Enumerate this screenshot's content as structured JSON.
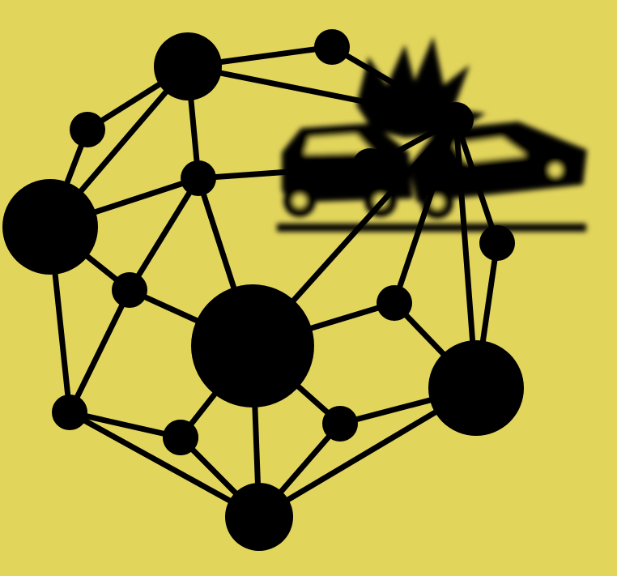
{
  "colors": {
    "background": "#E2D55C",
    "ink": "#000000"
  },
  "illustration": {
    "icon": "car-crash-icon",
    "blurred": true
  },
  "network": {
    "nodes": [
      {
        "id": "n1",
        "size": "medium"
      },
      {
        "id": "n2",
        "size": "small"
      },
      {
        "id": "n3",
        "size": "small"
      },
      {
        "id": "n4",
        "size": "small"
      },
      {
        "id": "n5",
        "size": "large"
      },
      {
        "id": "n6",
        "size": "small"
      },
      {
        "id": "n7",
        "size": "small"
      },
      {
        "id": "n8",
        "size": "small"
      },
      {
        "id": "n9",
        "size": "xlarge"
      },
      {
        "id": "n10",
        "size": "small"
      },
      {
        "id": "n11",
        "size": "small"
      },
      {
        "id": "n12",
        "size": "large"
      },
      {
        "id": "n13",
        "size": "small"
      },
      {
        "id": "n14",
        "size": "small"
      },
      {
        "id": "n15",
        "size": "small"
      },
      {
        "id": "n16",
        "size": "small"
      },
      {
        "id": "n17",
        "size": "medium"
      }
    ],
    "edges": [
      [
        "n1",
        "n2"
      ],
      [
        "n1",
        "n3"
      ],
      [
        "n1",
        "n4"
      ],
      [
        "n1",
        "n6"
      ],
      [
        "n1",
        "n5"
      ],
      [
        "n2",
        "n4"
      ],
      [
        "n3",
        "n5"
      ],
      [
        "n6",
        "n5"
      ],
      [
        "n6",
        "n8"
      ],
      [
        "n6",
        "n9"
      ],
      [
        "n5",
        "n8"
      ],
      [
        "n5",
        "n13"
      ],
      [
        "n8",
        "n9"
      ],
      [
        "n8",
        "n13"
      ],
      [
        "n13",
        "n15"
      ],
      [
        "n13",
        "n17"
      ],
      [
        "n9",
        "n15"
      ],
      [
        "n9",
        "n16"
      ],
      [
        "n9",
        "n10"
      ],
      [
        "n9",
        "n17"
      ],
      [
        "n9",
        "n4"
      ],
      [
        "n15",
        "n17"
      ],
      [
        "n16",
        "n17"
      ],
      [
        "n16",
        "n12"
      ],
      [
        "n17",
        "n12"
      ],
      [
        "n10",
        "n12"
      ],
      [
        "n10",
        "n4"
      ],
      [
        "n4",
        "n11"
      ],
      [
        "n4",
        "n12"
      ],
      [
        "n11",
        "n12"
      ],
      [
        "n4",
        "n7"
      ],
      [
        "n7",
        "n6"
      ]
    ]
  }
}
